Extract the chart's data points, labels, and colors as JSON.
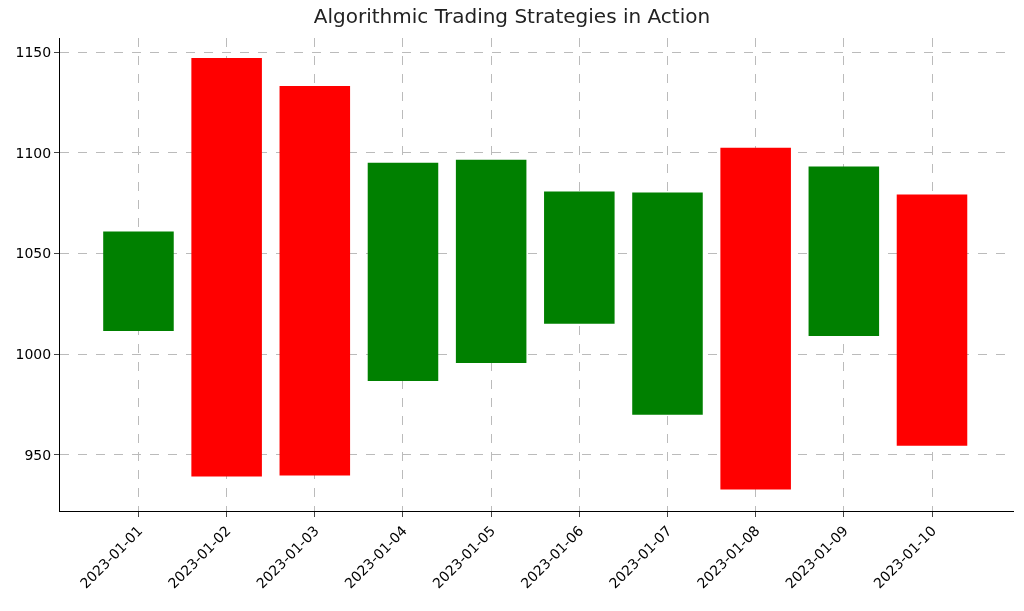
{
  "chart_data": {
    "type": "bar",
    "title": "Algorithmic Trading Strategies in Action",
    "categories": [
      "2023-01-01",
      "2023-01-02",
      "2023-01-03",
      "2023-01-04",
      "2023-01-05",
      "2023-01-06",
      "2023-01-07",
      "2023-01-08",
      "2023-01-09",
      "2023-01-10"
    ],
    "base": [
      1011.4,
      939.1,
      939.6,
      986.6,
      995.5,
      1015.0,
      969.8,
      932.7,
      1008.9,
      954.4
    ],
    "values": [
      49.5,
      208.0,
      193.6,
      108.4,
      101.0,
      65.7,
      110.4,
      169.8,
      84.2,
      124.8
    ],
    "colors": [
      "#008000",
      "#ff0000",
      "#ff0000",
      "#008000",
      "#008000",
      "#008000",
      "#008000",
      "#ff0000",
      "#008000",
      "#ff0000"
    ],
    "ylim": [
      922,
      1157
    ],
    "yticks": [
      950,
      1000,
      1050,
      1100,
      1150
    ],
    "grid": true
  }
}
